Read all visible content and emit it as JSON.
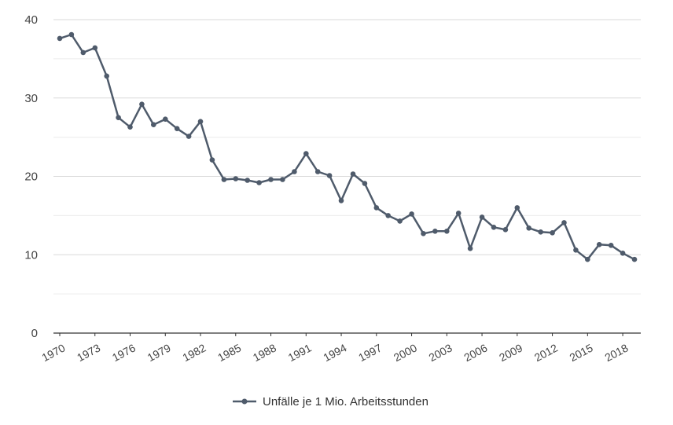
{
  "chart_data": {
    "type": "line",
    "title": "",
    "xlabel": "",
    "ylabel": "",
    "ylim": [
      0,
      40
    ],
    "y_ticks": [
      "0",
      "10",
      "20",
      "30",
      "40"
    ],
    "x_tick_labels": [
      "1970",
      "1973",
      "1976",
      "1979",
      "1982",
      "1985",
      "1988",
      "1991",
      "1994",
      "1997",
      "2000",
      "2003",
      "2006",
      "2009",
      "2012",
      "2015",
      "2018"
    ],
    "grid": "horizontal",
    "legend": "bottom-center",
    "colors": {
      "series": "#4f5b6b",
      "grid": "#d9d9d9",
      "axis": "#333333"
    },
    "series": [
      {
        "name": "Unfälle je 1 Mio. Arbeitsstunden",
        "x": [
          1970,
          1971,
          1972,
          1973,
          1974,
          1975,
          1976,
          1977,
          1978,
          1979,
          1980,
          1981,
          1982,
          1983,
          1984,
          1985,
          1986,
          1987,
          1988,
          1989,
          1990,
          1991,
          1992,
          1993,
          1994,
          1995,
          1996,
          1997,
          1998,
          1999,
          2000,
          2001,
          2002,
          2003,
          2004,
          2005,
          2006,
          2007,
          2008,
          2009,
          2010,
          2011,
          2012,
          2013,
          2014,
          2015,
          2016,
          2017,
          2018,
          2019
        ],
        "values": [
          37.6,
          38.1,
          35.8,
          36.4,
          32.8,
          27.5,
          26.3,
          29.2,
          26.6,
          27.3,
          26.1,
          25.1,
          27.0,
          22.1,
          19.6,
          19.7,
          19.5,
          19.2,
          19.6,
          19.6,
          20.6,
          22.9,
          20.6,
          20.1,
          16.9,
          20.3,
          19.1,
          16.0,
          15.0,
          14.3,
          15.2,
          12.7,
          13.0,
          13.0,
          15.3,
          10.8,
          14.8,
          13.5,
          13.2,
          16.0,
          13.4,
          12.9,
          12.8,
          14.1,
          10.6,
          9.4,
          11.3,
          11.2,
          10.2,
          9.4
        ]
      }
    ]
  }
}
